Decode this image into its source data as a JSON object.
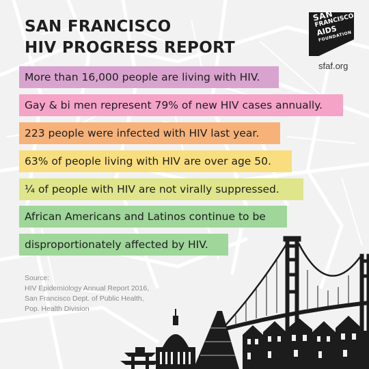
{
  "header": {
    "title_line1": "SAN FRANCISCO",
    "title_line2": "HIV PROGRESS REPORT"
  },
  "logo": {
    "line1": "SAN",
    "line2": "FRANCISCO",
    "line3": "AIDS",
    "line4": "FOUNDATION",
    "url": "sfaf.org"
  },
  "facts": [
    {
      "text": "More than 16,000 people are living with HIV.",
      "color": "#d9a3cf"
    },
    {
      "text": "Gay & bi men represent 79% of new HIV cases annually.",
      "color": "#f5a3c7"
    },
    {
      "text": "223 people were infected with HIV last year.",
      "color": "#f7b27a"
    },
    {
      "text": "63% of people living with HIV are over age 50.",
      "color": "#f8de7e"
    },
    {
      "text": "¼ of people with HIV are not virally suppressed.",
      "color": "#dfe58a"
    },
    {
      "text": "African Americans and Latinos continue to be",
      "color": "#9fd69a"
    },
    {
      "text": "disproportionately affected by HIV.",
      "color": "#9fd69a"
    }
  ],
  "source": {
    "heading": "Source:",
    "line1": "HIV Epidemiology Annual Report 2016,",
    "line2": "San Francisco Dept. of Public Health,",
    "line3": "Pop. Health Division"
  },
  "colors": {
    "background": "#f2f2f2",
    "map_lines": "#ffffff",
    "ink": "#1f1f1f"
  },
  "icons": [
    "sfaf-logo",
    "golden-gate-bridge-illustration",
    "city-skyline-illustration",
    "street-map-background"
  ]
}
